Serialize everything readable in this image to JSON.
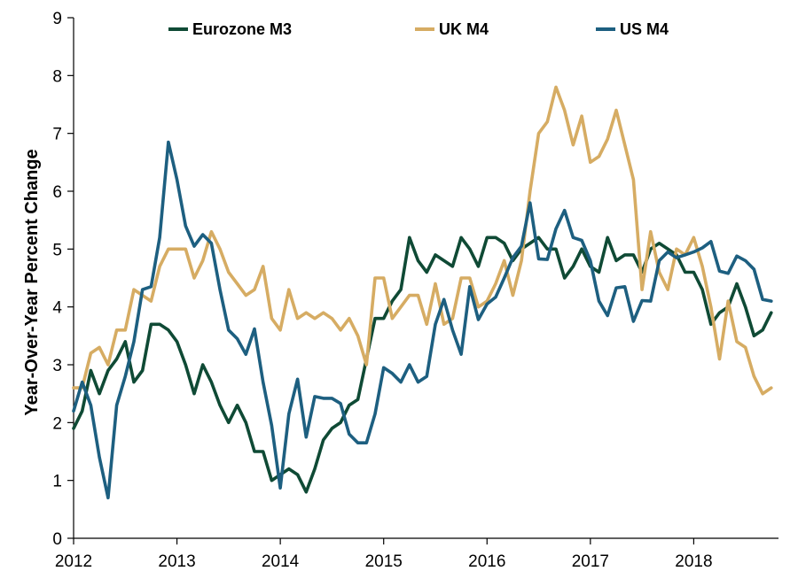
{
  "chart_data": {
    "type": "line",
    "xlabel": "",
    "ylabel": "Year-Over-Year  Percent Change",
    "xlim": [
      2012,
      2018.82
    ],
    "ylim": [
      0,
      9
    ],
    "x_ticks": [
      2012,
      2013,
      2014,
      2015,
      2016,
      2017,
      2018
    ],
    "y_ticks": [
      0,
      1,
      2,
      3,
      4,
      5,
      6,
      7,
      8,
      9
    ],
    "grid": false,
    "legend_position": "top",
    "series": [
      {
        "name": "Eurozone M3",
        "color": "#0f4a35",
        "start": 2012.0,
        "step": 0.08333,
        "values": [
          1.9,
          2.2,
          2.9,
          2.5,
          2.9,
          3.1,
          3.4,
          2.7,
          2.9,
          3.7,
          3.7,
          3.6,
          3.4,
          3.0,
          2.5,
          3.0,
          2.7,
          2.3,
          2.0,
          2.3,
          2.0,
          1.5,
          1.5,
          1.0,
          1.1,
          1.2,
          1.1,
          0.8,
          1.2,
          1.7,
          1.9,
          2.0,
          2.3,
          2.4,
          3.1,
          3.8,
          3.8,
          4.1,
          4.3,
          5.2,
          4.8,
          4.6,
          4.9,
          4.8,
          4.7,
          5.2,
          5.0,
          4.7,
          5.2,
          5.2,
          5.1,
          4.8,
          5.0,
          5.1,
          5.2,
          5.0,
          5.0,
          4.5,
          4.7,
          5.0,
          4.7,
          4.6,
          5.2,
          4.8,
          4.9,
          4.9,
          4.6,
          5.0,
          5.1,
          5.0,
          4.9,
          4.6,
          4.6,
          4.3,
          3.7,
          3.9,
          4.0,
          4.4,
          4.0,
          3.5,
          3.6,
          3.9
        ]
      },
      {
        "name": "UK M4",
        "color": "#d6ac63",
        "start": 2012.0,
        "step": 0.08333,
        "values": [
          2.6,
          2.6,
          3.2,
          3.3,
          3.0,
          3.6,
          3.6,
          4.3,
          4.2,
          4.1,
          4.7,
          5.0,
          5.0,
          5.0,
          4.5,
          4.8,
          5.3,
          5.0,
          4.6,
          4.4,
          4.2,
          4.3,
          4.7,
          3.8,
          3.6,
          4.3,
          3.8,
          3.9,
          3.8,
          3.9,
          3.8,
          3.6,
          3.8,
          3.5,
          3.0,
          4.5,
          4.5,
          3.8,
          4.0,
          4.2,
          4.2,
          3.7,
          4.4,
          3.7,
          3.8,
          4.5,
          4.5,
          4.0,
          4.1,
          4.4,
          4.8,
          4.2,
          4.8,
          6.0,
          7.0,
          7.2,
          7.8,
          7.4,
          6.8,
          7.3,
          6.5,
          6.6,
          6.9,
          7.4,
          6.8,
          6.2,
          4.3,
          5.3,
          4.6,
          4.3,
          5.0,
          4.9,
          5.2,
          4.7,
          4.0,
          3.1,
          4.1,
          3.4,
          3.3,
          2.8,
          2.5,
          2.6
        ]
      },
      {
        "name": "US M4",
        "color": "#1d5f80",
        "start": 2012.0,
        "step": 0.08333,
        "values": [
          2.2,
          2.7,
          2.3,
          1.4,
          0.7,
          2.3,
          2.8,
          3.4,
          4.3,
          4.35,
          5.2,
          6.85,
          6.2,
          5.4,
          5.05,
          5.25,
          5.1,
          4.3,
          3.6,
          3.45,
          3.18,
          3.62,
          2.7,
          1.95,
          0.87,
          2.15,
          2.75,
          1.75,
          2.45,
          2.42,
          2.42,
          2.33,
          1.8,
          1.65,
          1.65,
          2.15,
          2.95,
          2.85,
          2.7,
          3.0,
          2.7,
          2.8,
          3.7,
          4.13,
          3.6,
          3.18,
          4.35,
          3.78,
          4.05,
          4.17,
          4.5,
          4.85,
          5.05,
          5.8,
          4.83,
          4.82,
          5.35,
          5.67,
          5.2,
          5.15,
          4.8,
          4.1,
          3.85,
          4.33,
          4.35,
          3.75,
          4.11,
          4.1,
          4.8,
          4.95,
          4.85,
          4.9,
          4.95,
          5.02,
          5.13,
          4.62,
          4.58,
          4.88,
          4.8,
          4.65,
          4.13,
          4.1
        ]
      }
    ]
  }
}
